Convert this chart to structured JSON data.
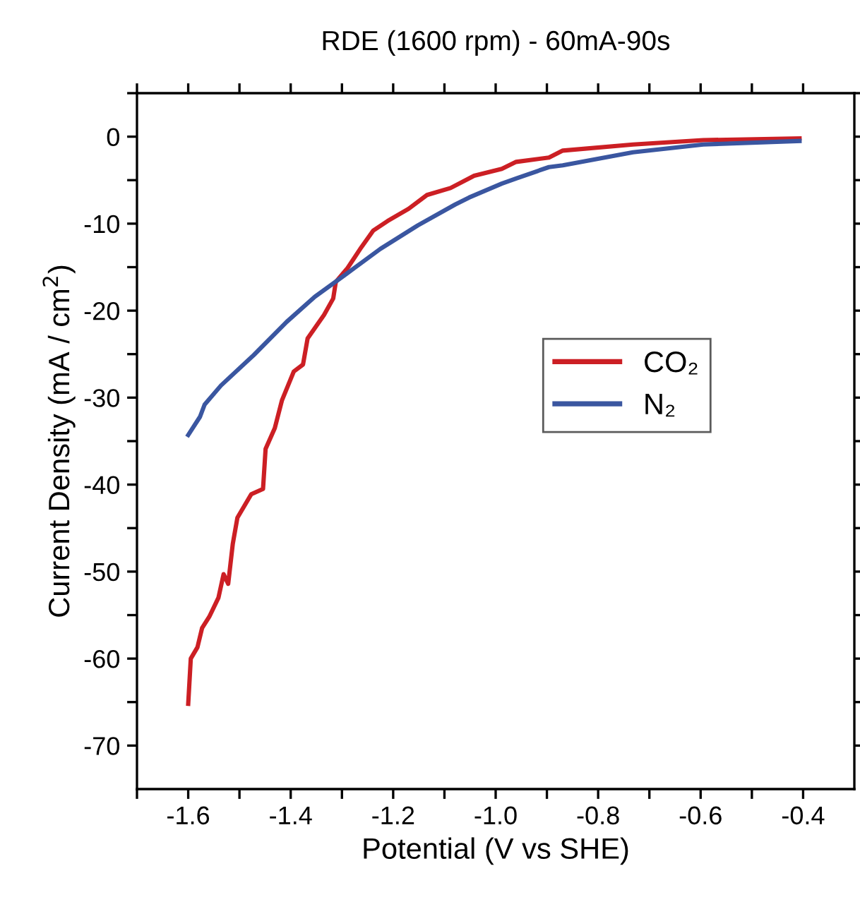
{
  "chart_data": {
    "type": "line",
    "title": "RDE (1600 rpm) - 60mA-90s",
    "xlabel": "Potential (V vs SHE)",
    "ylabel": "Current Density (mA / cm$^{2}$)",
    "xlim": [
      -1.7,
      -0.3
    ],
    "ylim": [
      -75,
      5
    ],
    "xticks": [
      {
        "value": -1.7,
        "label": null
      },
      -1.6,
      {
        "value": -1.5,
        "label": null
      },
      -1.4,
      {
        "value": -1.3,
        "label": null
      },
      -1.2,
      {
        "value": -1.1,
        "label": null
      },
      {
        "value": -1.0,
        "label": "-1.0"
      },
      {
        "value": -0.9,
        "label": null
      },
      -0.8,
      {
        "value": -0.7,
        "label": null
      },
      -0.6,
      {
        "value": -0.5,
        "label": null
      },
      -0.4
    ],
    "yticks": [
      -70,
      {
        "value": -65,
        "label": null
      },
      -60,
      {
        "value": -55,
        "label": null
      },
      -50,
      {
        "value": -45,
        "label": null
      },
      -40,
      {
        "value": -35,
        "label": null
      },
      -30,
      {
        "value": -25,
        "label": null
      },
      -20,
      {
        "value": -15,
        "label": null
      },
      -10,
      {
        "value": -5,
        "label": null
      },
      0,
      {
        "value": 5,
        "label": null
      }
    ],
    "grid": false,
    "legend": "right",
    "marker": "none",
    "line_style": "solid",
    "series": [
      {
        "name": "CO₂",
        "color": "#cc1f24",
        "x": [
          -1.6,
          -1.595,
          -1.582,
          -1.573,
          -1.559,
          -1.541,
          -1.531,
          -1.522,
          -1.513,
          -1.504,
          -1.477,
          -1.454,
          -1.449,
          -1.431,
          -1.417,
          -1.394,
          -1.376,
          -1.367,
          -1.335,
          -1.317,
          -1.312,
          -1.289,
          -1.262,
          -1.239,
          -1.211,
          -1.17,
          -1.134,
          -1.088,
          -1.042,
          -0.988,
          -0.96,
          -0.896,
          -0.869,
          -0.732,
          -0.595,
          -0.407
        ],
        "values": [
          -65.2,
          -60.0,
          -58.7,
          -56.5,
          -55.2,
          -53.0,
          -50.3,
          -51.4,
          -46.8,
          -43.8,
          -41.1,
          -40.5,
          -35.9,
          -33.5,
          -30.3,
          -27.0,
          -26.2,
          -23.2,
          -20.5,
          -18.6,
          -16.7,
          -15.1,
          -12.7,
          -10.8,
          -9.7,
          -8.3,
          -6.7,
          -5.9,
          -4.5,
          -3.7,
          -2.9,
          -2.4,
          -1.6,
          -0.9,
          -0.4,
          -0.2
        ]
      },
      {
        "name": "N₂",
        "color": "#3a56a0",
        "x": [
          -1.6,
          -1.577,
          -1.568,
          -1.536,
          -1.472,
          -1.408,
          -1.353,
          -1.294,
          -1.225,
          -1.152,
          -1.079,
          -1.052,
          -0.988,
          -0.96,
          -0.896,
          -0.869,
          -0.732,
          -0.595,
          -0.407
        ],
        "values": [
          -34.3,
          -32.2,
          -30.8,
          -28.6,
          -25.1,
          -21.3,
          -18.4,
          -15.9,
          -12.9,
          -10.2,
          -7.8,
          -7.0,
          -5.4,
          -4.8,
          -3.5,
          -3.3,
          -1.8,
          -0.9,
          -0.5
        ]
      }
    ]
  }
}
